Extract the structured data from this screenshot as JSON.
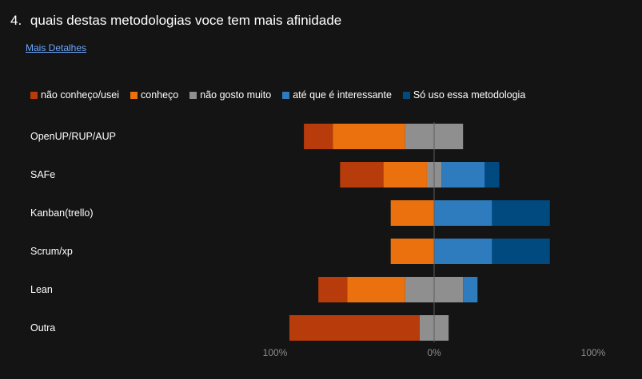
{
  "question": {
    "number": "4.",
    "title": "quais destas metodologias voce tem mais afinidade"
  },
  "details_link": "Mais Detalhes",
  "colors": {
    "background": "#141414",
    "link": "#6ea8ff",
    "axis_line": "#5c5c5c",
    "tick_label": "#8c8c8c"
  },
  "chart_data": {
    "type": "bar",
    "subtype": "diverging-stacked-horizontal",
    "categories": [
      "OpenUP/RUP/AUP",
      "SAFe",
      "Kanban(trello)",
      "Scrum/xp",
      "Lean",
      "Outra"
    ],
    "series": [
      {
        "name": "não conheço/usei",
        "color": "#b83b0b",
        "values": [
          20,
          30,
          0,
          0,
          20,
          90
        ]
      },
      {
        "name": "conheço",
        "color": "#ea710e",
        "values": [
          50,
          30,
          30,
          30,
          40,
          0
        ]
      },
      {
        "name": "não gosto muito",
        "color": "#8f8f8f",
        "values": [
          40,
          10,
          0,
          0,
          40,
          20
        ]
      },
      {
        "name": "até que é interessante",
        "color": "#2e7bbd",
        "values": [
          0,
          30,
          40,
          40,
          10,
          0
        ]
      },
      {
        "name": "Só uso essa metodologia",
        "color": "#004a80",
        "values": [
          0,
          10,
          40,
          40,
          0,
          0
        ]
      }
    ],
    "neutral_series": "não gosto muito",
    "xlim": [
      -100,
      100
    ],
    "xticks": [
      "100%",
      "0%",
      "100%"
    ],
    "legend_position": "top-left",
    "grid": false
  }
}
